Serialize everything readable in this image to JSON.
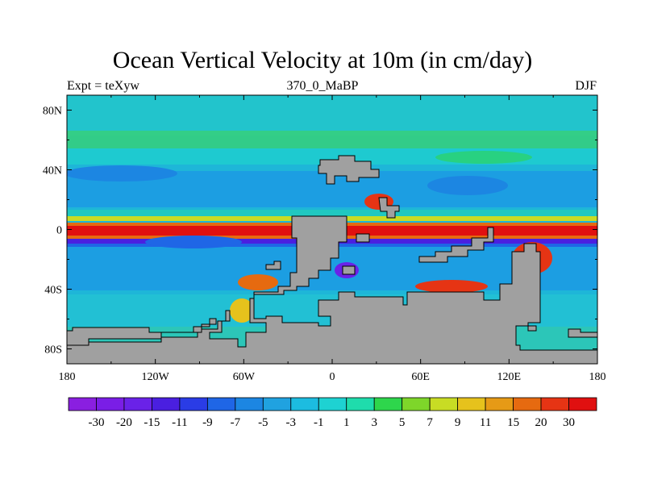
{
  "chart_data": {
    "type": "heatmap",
    "title": "Ocean Vertical Velocity at 10m (in cm/day)",
    "left_string": "Expt = teXyw",
    "center_string": "370_0_MaBP",
    "right_string": "DJF",
    "x_ticks": [
      "180",
      "120W",
      "60W",
      "0",
      "60E",
      "120E",
      "180"
    ],
    "x_tick_values": [
      -180,
      -120,
      -60,
      0,
      60,
      120,
      180
    ],
    "y_ticks": [
      "80N",
      "40N",
      "0",
      "40S",
      "80S"
    ],
    "y_tick_values": [
      80,
      40,
      0,
      -40,
      -80
    ],
    "xlim": [
      -180,
      180
    ],
    "ylim": [
      -90,
      90
    ],
    "colorbar": {
      "labels": [
        "-30",
        "-20",
        "-15",
        "-11",
        "-9",
        "-7",
        "-5",
        "-3",
        "-1",
        "1",
        "3",
        "5",
        "7",
        "9",
        "11",
        "15",
        "20",
        "30"
      ],
      "colors": [
        "#8a1fe0",
        "#7a1ee6",
        "#6a22e8",
        "#4a1fe0",
        "#2a3ce6",
        "#1f66e6",
        "#1c86e2",
        "#20a2e0",
        "#1cbce0",
        "#1ed2d2",
        "#1fdcac",
        "#2ed64c",
        "#7ed62a",
        "#c8dc24",
        "#e6c21c",
        "#e69a16",
        "#e66a10",
        "#e63414",
        "#e01010"
      ]
    },
    "land_color": "#a0a0a0"
  }
}
